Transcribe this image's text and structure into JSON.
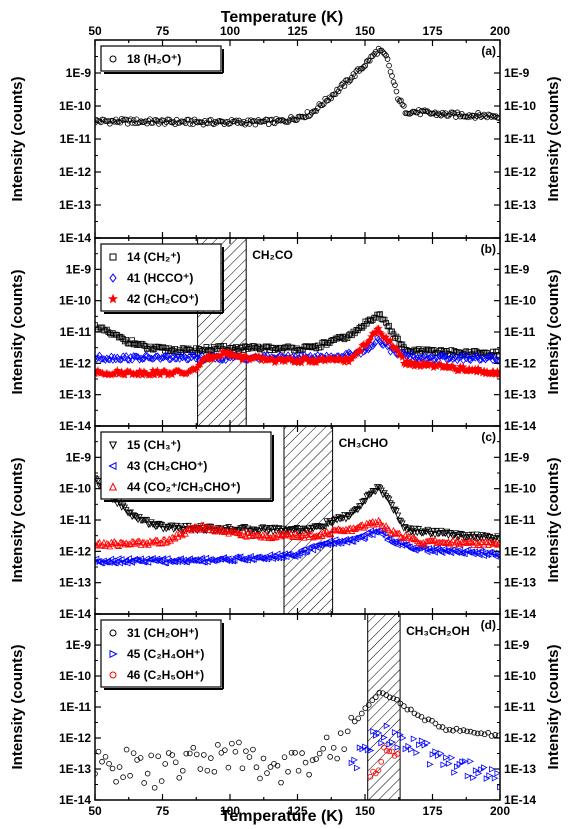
{
  "chart_data": {
    "type": "scatter",
    "x_axis": {
      "label": "Temperature (K)",
      "xlim": [
        50,
        200
      ],
      "ticks": [
        "50",
        "75",
        "100",
        "125",
        "150",
        "175",
        "200"
      ],
      "position": "top and bottom"
    },
    "y_axis": {
      "label": "Intensity (counts)",
      "scale": "log",
      "ylim": [
        1e-14,
        1e-08
      ],
      "ticks": [
        "1E-14",
        "1E-13",
        "1E-12",
        "1E-11",
        "1E-10",
        "1E-9"
      ],
      "position": "left and right"
    },
    "grid": false,
    "panels": [
      {
        "label": "(a)",
        "annotation": "",
        "band": null,
        "legend": [
          {
            "text": "18 (H₂O⁺)",
            "marker": "circle",
            "color": "#000000"
          }
        ],
        "series": [
          {
            "name": "18 (H₂O⁺)",
            "marker": "circle",
            "color": "#000000",
            "points": [
              [
                50,
                3.5e-11
              ],
              [
                80,
                3.3e-11
              ],
              [
                110,
                3.2e-11
              ],
              [
                120,
                3.5e-11
              ],
              [
                130,
                6e-11
              ],
              [
                140,
                3e-10
              ],
              [
                150,
                1.8e-09
              ],
              [
                155,
                5e-09
              ],
              [
                158,
                3e-09
              ],
              [
                162,
                2e-10
              ],
              [
                165,
                7e-11
              ],
              [
                180,
                5.5e-11
              ],
              [
                200,
                5e-11
              ]
            ]
          }
        ]
      },
      {
        "label": "(b)",
        "annotation": "CH₂CO",
        "band": [
          88,
          106
        ],
        "legend": [
          {
            "text": "14 (CH₂⁺)",
            "marker": "square",
            "color": "#000000"
          },
          {
            "text": "41 (HCCO⁺)",
            "marker": "diamond",
            "color": "#0000ff"
          },
          {
            "text": "42 (CH₂CO⁺)",
            "marker": "star",
            "color": "#ff0000"
          }
        ],
        "series": [
          {
            "name": "14 (CH₂⁺)",
            "marker": "square",
            "color": "#000000",
            "points": [
              [
                50,
                1.5e-11
              ],
              [
                60,
                6e-12
              ],
              [
                70,
                3e-12
              ],
              [
                85,
                2.5e-12
              ],
              [
                95,
                3e-12
              ],
              [
                105,
                3e-12
              ],
              [
                130,
                3e-12
              ],
              [
                145,
                8e-12
              ],
              [
                155,
                4e-11
              ],
              [
                160,
                1e-11
              ],
              [
                165,
                2.5e-12
              ],
              [
                200,
                2e-12
              ]
            ]
          },
          {
            "name": "41 (HCCO⁺)",
            "marker": "diamond",
            "color": "#0000ff",
            "points": [
              [
                50,
                1.5e-12
              ],
              [
                80,
                1.5e-12
              ],
              [
                100,
                1.5e-12
              ],
              [
                140,
                1.6e-12
              ],
              [
                150,
                2.5e-12
              ],
              [
                155,
                6e-12
              ],
              [
                160,
                2.5e-12
              ],
              [
                170,
                1.5e-12
              ],
              [
                200,
                1.4e-12
              ]
            ]
          },
          {
            "name": "42 (CH₂CO⁺)",
            "marker": "star",
            "color": "#ff0000",
            "points": [
              [
                50,
                5e-13
              ],
              [
                70,
                5e-13
              ],
              [
                85,
                5e-13
              ],
              [
                92,
                1.5e-12
              ],
              [
                98,
                2.2e-12
              ],
              [
                105,
                1.5e-12
              ],
              [
                120,
                1.2e-12
              ],
              [
                145,
                1.3e-12
              ],
              [
                155,
                1.2e-11
              ],
              [
                160,
                4e-12
              ],
              [
                165,
                1e-12
              ],
              [
                200,
                5e-13
              ]
            ]
          }
        ]
      },
      {
        "label": "(c)",
        "annotation": "CH₃CHO",
        "band": [
          120,
          138
        ],
        "legend": [
          {
            "text": "15 (CH₃⁺)",
            "marker": "triangle-down",
            "color": "#000000"
          },
          {
            "text": "43 (CH₂CHO⁺)",
            "marker": "triangle-left",
            "color": "#0000ff"
          },
          {
            "text": "44 (CO₂⁺/CH₃CHO⁺)",
            "marker": "triangle-up",
            "color": "#ff0000"
          }
        ],
        "series": [
          {
            "name": "15 (CH₃⁺)",
            "marker": "triangle-down",
            "color": "#000000",
            "points": [
              [
                50,
                2e-10
              ],
              [
                58,
                4e-11
              ],
              [
                65,
                1.2e-11
              ],
              [
                75,
                6e-12
              ],
              [
                100,
                5e-12
              ],
              [
                130,
                5e-12
              ],
              [
                145,
                1.5e-11
              ],
              [
                155,
                1.2e-10
              ],
              [
                160,
                3e-11
              ],
              [
                165,
                5e-12
              ],
              [
                200,
                2.5e-12
              ]
            ]
          },
          {
            "name": "43 (CH₂CHO⁺)",
            "marker": "triangle-left",
            "color": "#0000ff",
            "points": [
              [
                50,
                5e-13
              ],
              [
                80,
                5e-13
              ],
              [
                110,
                6e-13
              ],
              [
                125,
                8e-13
              ],
              [
                135,
                1.8e-12
              ],
              [
                148,
                2.5e-12
              ],
              [
                155,
                5e-12
              ],
              [
                160,
                2e-12
              ],
              [
                170,
                1.2e-12
              ],
              [
                200,
                8e-13
              ]
            ]
          },
          {
            "name": "44 (CO₂⁺/CH₃CHO⁺)",
            "marker": "triangle-up",
            "color": "#ff0000",
            "points": [
              [
                50,
                1.6e-12
              ],
              [
                75,
                2e-12
              ],
              [
                88,
                6e-12
              ],
              [
                95,
                5e-12
              ],
              [
                110,
                3e-12
              ],
              [
                130,
                3.2e-12
              ],
              [
                145,
                5e-12
              ],
              [
                155,
                9e-12
              ],
              [
                160,
                4e-12
              ],
              [
                170,
                2e-12
              ],
              [
                200,
                1.8e-12
              ]
            ]
          }
        ]
      },
      {
        "label": "(d)",
        "annotation": "CH₃CH₂OH",
        "band": [
          151,
          163
        ],
        "legend": [
          {
            "text": "31 (CH₂OH⁺)",
            "marker": "circle",
            "color": "#000000"
          },
          {
            "text": "45 (C₂H₄OH⁺)",
            "marker": "triangle-right",
            "color": "#0000ff"
          },
          {
            "text": "46 (C₂H₅OH⁺)",
            "marker": "circle",
            "color": "#ff0000"
          }
        ],
        "series": [
          {
            "name": "31 (CH₂OH⁺)",
            "marker": "circle",
            "color": "#000000",
            "points": [
              [
                50,
                1e-13
              ],
              [
                60,
                1.5e-13
              ],
              [
                70,
                8e-14
              ],
              [
                80,
                1.2e-13
              ],
              [
                90,
                2e-13
              ],
              [
                100,
                3e-13
              ],
              [
                110,
                1.5e-13
              ],
              [
                120,
                1.2e-13
              ],
              [
                130,
                2e-13
              ],
              [
                140,
                6e-13
              ],
              [
                148,
                5e-12
              ],
              [
                155,
                3e-11
              ],
              [
                160,
                2e-11
              ],
              [
                170,
                5e-12
              ],
              [
                180,
                2e-12
              ],
              [
                200,
                1.2e-12
              ]
            ]
          },
          {
            "name": "45 (C₂H₄OH⁺)",
            "marker": "triangle-right",
            "color": "#0000ff",
            "points": [
              [
                145,
                1e-13
              ],
              [
                150,
                4e-13
              ],
              [
                155,
                1.5e-12
              ],
              [
                160,
                1.2e-12
              ],
              [
                170,
                4e-13
              ],
              [
                180,
                2e-13
              ],
              [
                190,
                1e-13
              ],
              [
                200,
                5e-14
              ]
            ]
          },
          {
            "name": "46 (C₂H₅OH⁺)",
            "marker": "circle",
            "color": "#ff0000",
            "points": [
              [
                152,
                5e-14
              ],
              [
                155,
                1.5e-13
              ],
              [
                158,
                3e-13
              ],
              [
                160,
                4e-13
              ],
              [
                162,
                2e-13
              ]
            ]
          }
        ]
      }
    ]
  }
}
